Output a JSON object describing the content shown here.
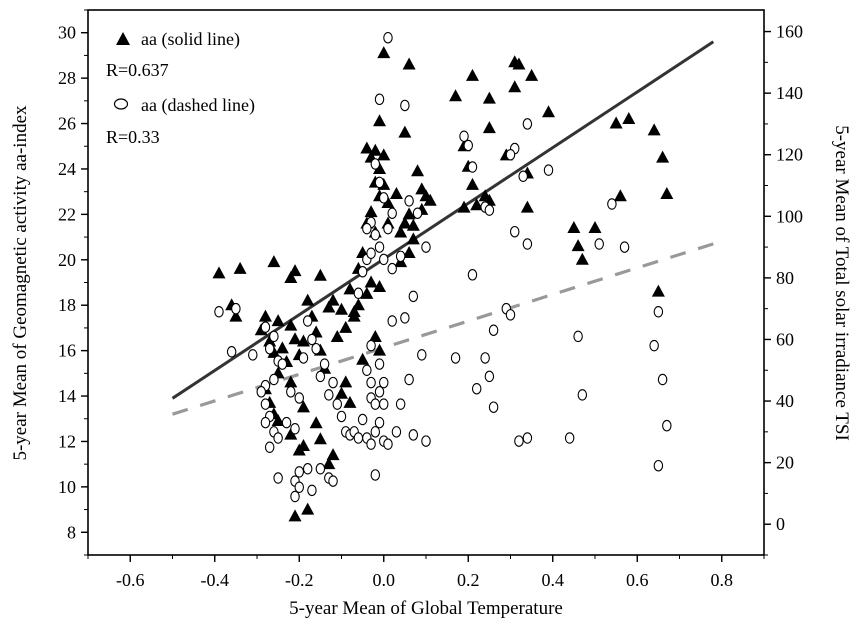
{
  "chart_data": {
    "type": "scatter",
    "xlabel": "5-year Mean of Global Temperature",
    "ylabel_left": "5-year Mean of Geomagnetic activity aa-index",
    "ylabel_right": "5-year Mean of Total solar irradiance TSI",
    "xlim": [
      -0.7,
      0.9
    ],
    "ylim_left": [
      7,
      31
    ],
    "ylim_right": [
      -10,
      167
    ],
    "x_ticks": [
      "-0.6",
      "-0.4",
      "-0.2",
      "0.0",
      "0.2",
      "0.4",
      "0.6",
      "0.8"
    ],
    "y_ticks_left": [
      "8",
      "10",
      "12",
      "14",
      "16",
      "18",
      "20",
      "22",
      "24",
      "26",
      "28",
      "30"
    ],
    "y_ticks_right": [
      "0",
      "20",
      "40",
      "60",
      "80",
      "100",
      "120",
      "140",
      "160"
    ],
    "grid": false,
    "legend": {
      "position": "top-left",
      "entries": [
        {
          "label": "aa (solid line)",
          "stat": "R=0.637",
          "marker": "filled-triangle"
        },
        {
          "label": "aa (dashed line)",
          "stat": "R=0.33",
          "marker": "open-circle"
        }
      ]
    },
    "series": [
      {
        "name": "aa (solid line)",
        "axis": "left",
        "marker": "filled-triangle",
        "color": "#000000",
        "points": [
          [
            -0.39,
            19.4
          ],
          [
            -0.36,
            18.0
          ],
          [
            -0.34,
            19.6
          ],
          [
            -0.35,
            17.5
          ],
          [
            -0.26,
            19.9
          ],
          [
            -0.22,
            19.2
          ],
          [
            -0.21,
            19.5
          ],
          [
            -0.15,
            19.3
          ],
          [
            -0.28,
            17.5
          ],
          [
            -0.29,
            16.9
          ],
          [
            -0.27,
            16.4
          ],
          [
            -0.26,
            15.9
          ],
          [
            -0.25,
            17.3
          ],
          [
            -0.24,
            16.1
          ],
          [
            -0.23,
            15.5
          ],
          [
            -0.22,
            17.1
          ],
          [
            -0.21,
            16.5
          ],
          [
            -0.2,
            15.8
          ],
          [
            -0.19,
            16.4
          ],
          [
            -0.18,
            18.2
          ],
          [
            -0.17,
            17.5
          ],
          [
            -0.16,
            16.8
          ],
          [
            -0.15,
            16.0
          ],
          [
            -0.14,
            15.2
          ],
          [
            -0.13,
            17.9
          ],
          [
            -0.12,
            18.2
          ],
          [
            -0.11,
            16.6
          ],
          [
            -0.1,
            17.8
          ],
          [
            -0.09,
            17.0
          ],
          [
            -0.09,
            14.6
          ],
          [
            -0.1,
            14.1
          ],
          [
            -0.08,
            13.7
          ],
          [
            -0.28,
            14.3
          ],
          [
            -0.27,
            13.7
          ],
          [
            -0.26,
            13.2
          ],
          [
            -0.25,
            12.9
          ],
          [
            -0.22,
            12.3
          ],
          [
            -0.2,
            11.6
          ],
          [
            -0.19,
            11.8
          ],
          [
            -0.16,
            12.8
          ],
          [
            -0.15,
            12.1
          ],
          [
            -0.13,
            11.0
          ],
          [
            -0.12,
            11.4
          ],
          [
            -0.21,
            8.7
          ],
          [
            -0.18,
            9.0
          ],
          [
            -0.25,
            15.0
          ],
          [
            -0.22,
            14.6
          ],
          [
            -0.19,
            13.5
          ],
          [
            -0.06,
            19.6
          ],
          [
            -0.05,
            20.3
          ],
          [
            -0.04,
            21.6
          ],
          [
            -0.03,
            22.1
          ],
          [
            -0.02,
            21.2
          ],
          [
            -0.01,
            22.8
          ],
          [
            0.0,
            23.3
          ],
          [
            0.01,
            22.5
          ],
          [
            -0.04,
            24.9
          ],
          [
            -0.03,
            24.5
          ],
          [
            -0.02,
            24.8
          ],
          [
            0.0,
            24.6
          ],
          [
            0.01,
            21.6
          ],
          [
            -0.02,
            23.4
          ],
          [
            -0.01,
            24.0
          ],
          [
            0.03,
            22.9
          ],
          [
            -0.03,
            19.0
          ],
          [
            -0.04,
            18.5
          ],
          [
            -0.06,
            18.0
          ],
          [
            -0.07,
            17.5
          ],
          [
            -0.01,
            18.8
          ],
          [
            -0.02,
            16.6
          ],
          [
            -0.01,
            16.0
          ],
          [
            -0.05,
            15.6
          ],
          [
            0.0,
            29.1
          ],
          [
            0.06,
            28.6
          ],
          [
            0.05,
            25.6
          ],
          [
            -0.01,
            26.1
          ],
          [
            0.04,
            21.2
          ],
          [
            0.05,
            21.6
          ],
          [
            0.06,
            22.0
          ],
          [
            0.07,
            21.5
          ],
          [
            0.08,
            23.9
          ],
          [
            0.09,
            23.1
          ],
          [
            0.1,
            22.8
          ],
          [
            0.11,
            22.6
          ],
          [
            0.09,
            22.2
          ],
          [
            0.07,
            20.9
          ],
          [
            0.06,
            20.3
          ],
          [
            0.04,
            19.9
          ],
          [
            0.17,
            27.2
          ],
          [
            0.21,
            28.1
          ],
          [
            0.25,
            27.1
          ],
          [
            0.31,
            28.7
          ],
          [
            0.32,
            28.6
          ],
          [
            0.35,
            28.1
          ],
          [
            0.31,
            27.6
          ],
          [
            0.39,
            26.5
          ],
          [
            0.25,
            25.8
          ],
          [
            0.29,
            24.6
          ],
          [
            0.19,
            25.0
          ],
          [
            0.2,
            24.1
          ],
          [
            0.21,
            23.3
          ],
          [
            0.24,
            22.8
          ],
          [
            0.25,
            22.6
          ],
          [
            0.22,
            22.4
          ],
          [
            0.19,
            22.3
          ],
          [
            0.34,
            23.8
          ],
          [
            0.34,
            22.3
          ],
          [
            0.45,
            21.4
          ],
          [
            0.46,
            20.6
          ],
          [
            0.47,
            20.0
          ],
          [
            0.5,
            21.4
          ],
          [
            0.55,
            26.0
          ],
          [
            0.58,
            26.2
          ],
          [
            0.56,
            22.8
          ],
          [
            0.64,
            25.7
          ],
          [
            0.66,
            24.5
          ],
          [
            0.67,
            22.9
          ],
          [
            0.65,
            18.6
          ],
          [
            -0.08,
            18.7
          ],
          [
            -0.07,
            17.7
          ]
        ]
      },
      {
        "name": "aa (dashed line)",
        "axis": "right",
        "marker": "open-circle",
        "color": "#000000",
        "points": [
          [
            -0.39,
            69
          ],
          [
            -0.35,
            70
          ],
          [
            -0.36,
            56
          ],
          [
            -0.31,
            55
          ],
          [
            -0.28,
            64
          ],
          [
            -0.27,
            57
          ],
          [
            -0.26,
            61
          ],
          [
            -0.25,
            53
          ],
          [
            -0.24,
            52
          ],
          [
            -0.26,
            47
          ],
          [
            -0.28,
            45
          ],
          [
            -0.29,
            43
          ],
          [
            -0.28,
            39
          ],
          [
            -0.27,
            35
          ],
          [
            -0.28,
            33
          ],
          [
            -0.26,
            30
          ],
          [
            -0.25,
            28
          ],
          [
            -0.27,
            25
          ],
          [
            -0.23,
            33
          ],
          [
            -0.21,
            31
          ],
          [
            -0.25,
            15
          ],
          [
            -0.21,
            14
          ],
          [
            -0.2,
            17
          ],
          [
            -0.18,
            18
          ],
          [
            -0.2,
            12
          ],
          [
            -0.21,
            9
          ],
          [
            -0.17,
            11
          ],
          [
            -0.15,
            18
          ],
          [
            -0.13,
            15
          ],
          [
            -0.12,
            14
          ],
          [
            -0.22,
            43
          ],
          [
            -0.2,
            41
          ],
          [
            -0.19,
            54
          ],
          [
            -0.18,
            66
          ],
          [
            -0.17,
            60
          ],
          [
            -0.16,
            57
          ],
          [
            -0.15,
            48
          ],
          [
            -0.14,
            52
          ],
          [
            -0.13,
            42
          ],
          [
            -0.12,
            46
          ],
          [
            -0.11,
            39
          ],
          [
            -0.1,
            35
          ],
          [
            -0.09,
            30
          ],
          [
            -0.08,
            29
          ],
          [
            -0.07,
            30
          ],
          [
            -0.06,
            28
          ],
          [
            -0.05,
            34
          ],
          [
            -0.04,
            28
          ],
          [
            -0.04,
            50
          ],
          [
            -0.03,
            46
          ],
          [
            -0.03,
            41
          ],
          [
            -0.02,
            39
          ],
          [
            -0.01,
            43
          ],
          [
            0.0,
            46
          ],
          [
            -0.01,
            33
          ],
          [
            -0.02,
            30
          ],
          [
            0.0,
            27
          ],
          [
            -0.03,
            26
          ],
          [
            -0.02,
            16
          ],
          [
            0.01,
            26
          ],
          [
            -0.06,
            75
          ],
          [
            -0.05,
            82
          ],
          [
            -0.04,
            86
          ],
          [
            -0.03,
            88
          ],
          [
            -0.02,
            94
          ],
          [
            -0.03,
            98
          ],
          [
            -0.04,
            96
          ],
          [
            0.0,
            86
          ],
          [
            0.02,
            83
          ],
          [
            0.02,
            66
          ],
          [
            -0.03,
            58
          ],
          [
            -0.01,
            52
          ],
          [
            -0.01,
            138
          ],
          [
            0.01,
            158
          ],
          [
            -0.02,
            117
          ],
          [
            -0.01,
            111
          ],
          [
            0.0,
            106
          ],
          [
            0.02,
            101
          ],
          [
            0.01,
            96
          ],
          [
            -0.01,
            90
          ],
          [
            0.05,
            136
          ],
          [
            0.06,
            105
          ],
          [
            0.08,
            101
          ],
          [
            0.1,
            90
          ],
          [
            0.04,
            87
          ],
          [
            0.07,
            74
          ],
          [
            0.05,
            67
          ],
          [
            0.09,
            55
          ],
          [
            0.06,
            47
          ],
          [
            0.04,
            39
          ],
          [
            0.07,
            29
          ],
          [
            0.1,
            27
          ],
          [
            0.2,
            123
          ],
          [
            0.19,
            126
          ],
          [
            0.21,
            116
          ],
          [
            0.24,
            103
          ],
          [
            0.25,
            102
          ],
          [
            0.31,
            122
          ],
          [
            0.3,
            120
          ],
          [
            0.33,
            113
          ],
          [
            0.39,
            115
          ],
          [
            0.34,
            130
          ],
          [
            0.31,
            95
          ],
          [
            0.34,
            91
          ],
          [
            0.21,
            81
          ],
          [
            0.22,
            44
          ],
          [
            0.25,
            48
          ],
          [
            0.26,
            63
          ],
          [
            0.29,
            70
          ],
          [
            0.3,
            68
          ],
          [
            0.17,
            54
          ],
          [
            0.24,
            54
          ],
          [
            0.32,
            27
          ],
          [
            0.34,
            28
          ],
          [
            0.44,
            28
          ],
          [
            0.46,
            61
          ],
          [
            0.47,
            42
          ],
          [
            0.51,
            91
          ],
          [
            0.54,
            104
          ],
          [
            0.57,
            90
          ],
          [
            0.64,
            58
          ],
          [
            0.66,
            47
          ],
          [
            0.65,
            69
          ],
          [
            0.67,
            32
          ],
          [
            0.65,
            19
          ],
          [
            0.0,
            39
          ],
          [
            0.03,
            30
          ],
          [
            0.26,
            38
          ]
        ]
      }
    ],
    "trend_lines": [
      {
        "series": "aa (solid line)",
        "axis": "left",
        "style": "solid",
        "color": "#333333",
        "x": [
          -0.5,
          0.78
        ],
        "y": [
          13.9,
          29.6
        ]
      },
      {
        "series": "aa (dashed line)",
        "axis": "left",
        "style": "dashed",
        "color": "#999999",
        "x": [
          -0.5,
          0.78
        ],
        "y": [
          13.2,
          20.7
        ]
      }
    ]
  }
}
